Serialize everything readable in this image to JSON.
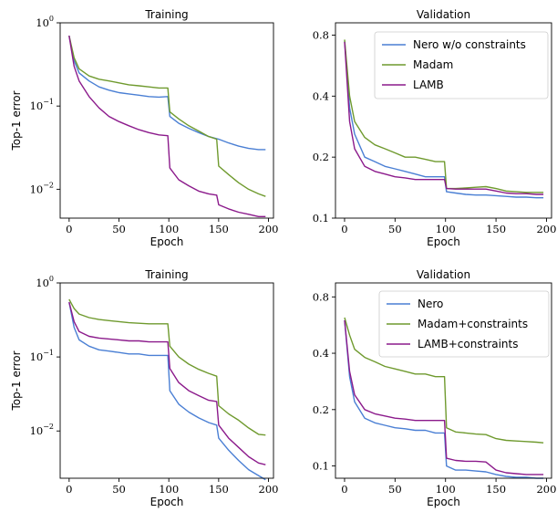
{
  "chart_data": [
    {
      "type": "line",
      "title": "Training",
      "xlabel": "Epoch",
      "ylabel": "Top-1 error",
      "yscale": "log",
      "xlim": [
        -9,
        205
      ],
      "ylim": [
        0.0045,
        1.0
      ],
      "xticks": [
        "0",
        "50",
        "100",
        "150",
        "200"
      ],
      "yticks": [
        {
          "base": "10",
          "exp": "0",
          "value": 1.0
        },
        {
          "base": "10",
          "exp": "−1",
          "value": 0.1
        },
        {
          "base": "10",
          "exp": "−2",
          "value": 0.01
        }
      ],
      "legend": null,
      "series": [
        {
          "name": "Nero w/o constraints",
          "color": "#4a7fd4",
          "x": [
            0,
            5,
            10,
            20,
            30,
            40,
            50,
            60,
            70,
            80,
            90,
            99,
            101,
            110,
            120,
            130,
            140,
            150,
            160,
            170,
            180,
            190,
            197
          ],
          "y": [
            0.7,
            0.35,
            0.25,
            0.2,
            0.17,
            0.155,
            0.145,
            0.14,
            0.135,
            0.13,
            0.128,
            0.13,
            0.075,
            0.062,
            0.054,
            0.048,
            0.043,
            0.04,
            0.036,
            0.033,
            0.031,
            0.03,
            0.03
          ]
        },
        {
          "name": "Madam",
          "color": "#6f9a2e",
          "x": [
            0,
            5,
            10,
            20,
            30,
            40,
            50,
            60,
            70,
            80,
            90,
            99,
            101,
            110,
            120,
            130,
            140,
            148,
            150,
            160,
            170,
            180,
            190,
            197
          ],
          "y": [
            0.7,
            0.38,
            0.28,
            0.23,
            0.21,
            0.2,
            0.19,
            0.18,
            0.175,
            0.17,
            0.165,
            0.165,
            0.085,
            0.07,
            0.058,
            0.05,
            0.043,
            0.04,
            0.019,
            0.015,
            0.012,
            0.01,
            0.0088,
            0.0082
          ]
        },
        {
          "name": "LAMB",
          "color": "#8b1a8b",
          "x": [
            0,
            5,
            10,
            20,
            30,
            40,
            50,
            60,
            70,
            80,
            90,
            99,
            101,
            110,
            120,
            130,
            140,
            148,
            150,
            160,
            170,
            180,
            190,
            197
          ],
          "y": [
            0.7,
            0.3,
            0.2,
            0.13,
            0.095,
            0.075,
            0.065,
            0.058,
            0.052,
            0.048,
            0.045,
            0.044,
            0.018,
            0.013,
            0.011,
            0.0095,
            0.0088,
            0.0085,
            0.0065,
            0.0058,
            0.0053,
            0.005,
            0.0047,
            0.0047
          ]
        }
      ]
    },
    {
      "type": "line",
      "title": "Validation",
      "xlabel": "Epoch",
      "ylabel": "",
      "yscale": "log",
      "xlim": [
        -9,
        205
      ],
      "ylim": [
        0.1,
        0.92
      ],
      "xticks": [
        "0",
        "50",
        "100",
        "150",
        "200"
      ],
      "yticks": [
        {
          "label": "0.1",
          "value": 0.1
        },
        {
          "label": "0.2",
          "value": 0.2
        },
        {
          "label": "0.4",
          "value": 0.4
        },
        {
          "label": "0.8",
          "value": 0.8
        }
      ],
      "legend": "top-right",
      "series": [
        {
          "name": "Nero w/o constraints",
          "color": "#4a7fd4",
          "x": [
            0,
            5,
            10,
            20,
            30,
            40,
            50,
            60,
            70,
            80,
            90,
            99,
            101,
            110,
            120,
            130,
            140,
            150,
            160,
            170,
            180,
            190,
            197
          ],
          "y": [
            0.75,
            0.35,
            0.26,
            0.2,
            0.19,
            0.18,
            0.175,
            0.17,
            0.165,
            0.16,
            0.16,
            0.16,
            0.135,
            0.133,
            0.131,
            0.13,
            0.13,
            0.129,
            0.128,
            0.127,
            0.127,
            0.126,
            0.126
          ]
        },
        {
          "name": "Madam",
          "color": "#6f9a2e",
          "x": [
            0,
            5,
            10,
            20,
            30,
            40,
            50,
            60,
            70,
            80,
            90,
            99,
            101,
            110,
            120,
            130,
            140,
            150,
            160,
            170,
            180,
            190,
            197
          ],
          "y": [
            0.76,
            0.4,
            0.3,
            0.25,
            0.23,
            0.22,
            0.21,
            0.2,
            0.2,
            0.195,
            0.19,
            0.19,
            0.14,
            0.14,
            0.141,
            0.142,
            0.143,
            0.14,
            0.136,
            0.135,
            0.134,
            0.134,
            0.134
          ]
        },
        {
          "name": "LAMB",
          "color": "#8b1a8b",
          "x": [
            0,
            5,
            10,
            20,
            30,
            40,
            50,
            60,
            70,
            80,
            90,
            99,
            101,
            110,
            120,
            130,
            140,
            150,
            160,
            170,
            180,
            190,
            197
          ],
          "y": [
            0.74,
            0.3,
            0.22,
            0.18,
            0.17,
            0.165,
            0.16,
            0.158,
            0.155,
            0.155,
            0.155,
            0.155,
            0.14,
            0.139,
            0.139,
            0.139,
            0.139,
            0.136,
            0.133,
            0.132,
            0.132,
            0.131,
            0.131
          ]
        }
      ]
    },
    {
      "type": "line",
      "title": "Training",
      "xlabel": "Epoch",
      "ylabel": "Top-1 error",
      "yscale": "log",
      "xlim": [
        -9,
        205
      ],
      "ylim": [
        0.0023,
        1.0
      ],
      "xticks": [
        "0",
        "50",
        "100",
        "150",
        "200"
      ],
      "yticks": [
        {
          "base": "10",
          "exp": "0",
          "value": 1.0
        },
        {
          "base": "10",
          "exp": "−1",
          "value": 0.1
        },
        {
          "base": "10",
          "exp": "−2",
          "value": 0.01
        }
      ],
      "legend": null,
      "series": [
        {
          "name": "Nero",
          "color": "#4a7fd4",
          "x": [
            0,
            5,
            10,
            20,
            30,
            40,
            50,
            60,
            70,
            80,
            90,
            99,
            101,
            110,
            120,
            130,
            140,
            148,
            150,
            160,
            170,
            180,
            190,
            197
          ],
          "y": [
            0.55,
            0.25,
            0.17,
            0.14,
            0.125,
            0.12,
            0.115,
            0.11,
            0.11,
            0.105,
            0.105,
            0.105,
            0.035,
            0.023,
            0.018,
            0.015,
            0.013,
            0.012,
            0.008,
            0.0055,
            0.004,
            0.003,
            0.0025,
            0.0022
          ]
        },
        {
          "name": "Madam+constraints",
          "color": "#6f9a2e",
          "x": [
            0,
            5,
            10,
            20,
            30,
            40,
            50,
            60,
            70,
            80,
            90,
            99,
            101,
            110,
            120,
            130,
            140,
            148,
            150,
            160,
            170,
            180,
            190,
            197
          ],
          "y": [
            0.6,
            0.45,
            0.38,
            0.34,
            0.32,
            0.31,
            0.3,
            0.29,
            0.285,
            0.28,
            0.28,
            0.28,
            0.14,
            0.1,
            0.08,
            0.068,
            0.06,
            0.055,
            0.022,
            0.017,
            0.014,
            0.011,
            0.009,
            0.0088
          ]
        },
        {
          "name": "LAMB+constraints",
          "color": "#8b1a8b",
          "x": [
            0,
            5,
            10,
            20,
            30,
            40,
            50,
            60,
            70,
            80,
            90,
            99,
            101,
            110,
            120,
            130,
            140,
            148,
            150,
            160,
            170,
            180,
            190,
            197
          ],
          "y": [
            0.55,
            0.3,
            0.22,
            0.19,
            0.18,
            0.175,
            0.17,
            0.165,
            0.165,
            0.16,
            0.16,
            0.16,
            0.07,
            0.045,
            0.035,
            0.03,
            0.026,
            0.025,
            0.012,
            0.008,
            0.006,
            0.0045,
            0.0037,
            0.0035
          ]
        }
      ]
    },
    {
      "type": "line",
      "title": "Validation",
      "xlabel": "Epoch",
      "ylabel": "",
      "yscale": "log",
      "xlim": [
        -9,
        205
      ],
      "ylim": [
        0.086,
        0.95
      ],
      "xticks": [
        "0",
        "50",
        "100",
        "150",
        "200"
      ],
      "yticks": [
        {
          "label": "0.1",
          "value": 0.1
        },
        {
          "label": "0.2",
          "value": 0.2
        },
        {
          "label": "0.4",
          "value": 0.4
        },
        {
          "label": "0.8",
          "value": 0.8
        }
      ],
      "legend": "top-right",
      "series": [
        {
          "name": "Nero",
          "color": "#4a7fd4",
          "x": [
            0,
            5,
            10,
            20,
            30,
            40,
            50,
            60,
            70,
            80,
            90,
            99,
            101,
            110,
            120,
            130,
            140,
            150,
            160,
            170,
            180,
            190,
            197
          ],
          "y": [
            0.6,
            0.3,
            0.22,
            0.18,
            0.17,
            0.165,
            0.16,
            0.158,
            0.155,
            0.155,
            0.15,
            0.15,
            0.1,
            0.095,
            0.095,
            0.094,
            0.093,
            0.09,
            0.088,
            0.087,
            0.087,
            0.086,
            0.086
          ]
        },
        {
          "name": "Madam+constraints",
          "color": "#6f9a2e",
          "x": [
            0,
            5,
            10,
            20,
            30,
            40,
            50,
            60,
            70,
            80,
            90,
            99,
            101,
            110,
            120,
            130,
            140,
            150,
            160,
            170,
            180,
            190,
            197
          ],
          "y": [
            0.62,
            0.5,
            0.42,
            0.38,
            0.36,
            0.34,
            0.33,
            0.32,
            0.31,
            0.31,
            0.3,
            0.3,
            0.16,
            0.152,
            0.15,
            0.148,
            0.147,
            0.14,
            0.137,
            0.136,
            0.135,
            0.134,
            0.133
          ]
        },
        {
          "name": "LAMB+constraints",
          "color": "#8b1a8b",
          "x": [
            0,
            5,
            10,
            20,
            30,
            40,
            50,
            60,
            70,
            80,
            90,
            99,
            101,
            110,
            120,
            130,
            140,
            150,
            160,
            170,
            180,
            190,
            197
          ],
          "y": [
            0.6,
            0.32,
            0.24,
            0.2,
            0.19,
            0.185,
            0.18,
            0.178,
            0.175,
            0.175,
            0.175,
            0.175,
            0.11,
            0.107,
            0.106,
            0.106,
            0.105,
            0.095,
            0.092,
            0.091,
            0.09,
            0.09,
            0.09
          ]
        }
      ]
    }
  ]
}
